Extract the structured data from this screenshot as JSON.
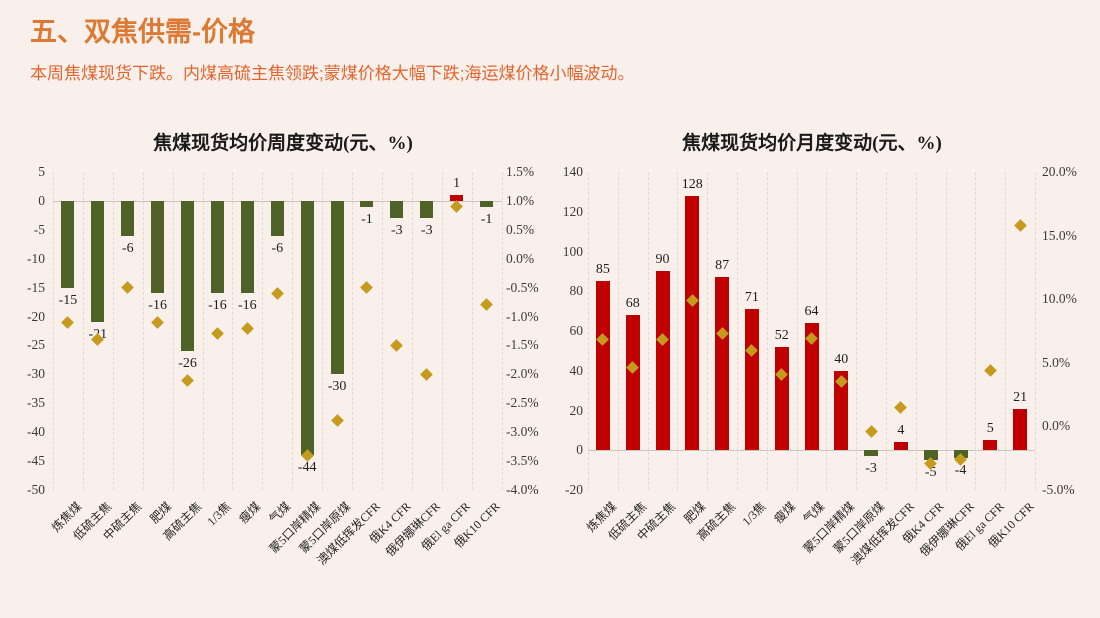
{
  "page": {
    "title": "五、双焦供需-价格",
    "subtitle": "本周焦煤现货下跌。内煤高硫主焦领跌;蒙煤价格大幅下跌;海运煤价格小幅波动。",
    "background": "#FAF0EB",
    "title_color": "#DC7A35",
    "subtitle_color": "#E2652F"
  },
  "colors": {
    "bar_positive": "#C00000",
    "bar_negative": "#4E6227",
    "marker": "#C69A1C",
    "grid": "#E3DAD2",
    "zero_line": "#CCC5BE",
    "axis_text": "#3A3A3A",
    "label_text": "#1F1F1F"
  },
  "chart_data": [
    {
      "type": "bar",
      "title": "焦煤现货均价周度变动(元、%)",
      "legend_position": "none",
      "grid": "vertical-dashed",
      "categories": [
        "炼焦煤",
        "低硫主焦",
        "中硫主焦",
        "肥煤",
        "高硫主焦",
        "1/3焦",
        "瘦煤",
        "气煤",
        "蒙5口岸精煤",
        "蒙5口岸原煤",
        "澳煤低挥发CFR",
        "俄K4 CFR",
        "俄伊娜琳CFR",
        "俄El ga CFR",
        "俄K10 CFR"
      ],
      "series": [
        {
          "type": "bar",
          "axis": "left",
          "values": [
            -15,
            -21,
            -6,
            -16,
            -26,
            -16,
            -16,
            -6,
            -44,
            -30,
            -1,
            -3,
            -3,
            1,
            -1
          ],
          "labels": [
            "-15",
            "-21",
            "-6",
            "-16",
            "-26",
            "-16",
            "-16",
            "-6",
            "-44",
            "-30",
            "-1",
            "-3",
            "-3",
            "1",
            "-1"
          ]
        },
        {
          "type": "scatter-diamond",
          "axis": "right",
          "values_pct": [
            -1.1,
            -1.4,
            -0.5,
            -1.1,
            -2.1,
            -1.3,
            -1.2,
            -0.6,
            -3.4,
            -2.8,
            -0.5,
            -1.5,
            -2.0,
            0.9,
            -0.8
          ]
        }
      ],
      "left_axis": {
        "max": 5,
        "min": -50,
        "step": 5,
        "ticks": [
          "5",
          "0",
          "-5",
          "-10",
          "-15",
          "-20",
          "-25",
          "-30",
          "-35",
          "-40",
          "-45",
          "-50"
        ]
      },
      "right_axis": {
        "max": 1.5,
        "min": -4.0,
        "step": 0.5,
        "ticks": [
          "1.5%",
          "1.0%",
          "0.5%",
          "0.0%",
          "-0.5%",
          "-1.0%",
          "-1.5%",
          "-2.0%",
          "-2.5%",
          "-3.0%",
          "-3.5%",
          "-4.0%"
        ]
      }
    },
    {
      "type": "bar",
      "title": "焦煤现货均价月度变动(元、%)",
      "legend_position": "none",
      "grid": "vertical-dashed",
      "categories": [
        "炼焦煤",
        "低硫主焦",
        "中硫主焦",
        "肥煤",
        "高硫主焦",
        "1/3焦",
        "瘦煤",
        "气煤",
        "蒙5口岸精煤",
        "蒙5口岸原煤",
        "澳煤低挥发CFR",
        "俄K4 CFR",
        "俄伊娜琳CFR",
        "俄El ga CFR",
        "俄K10 CFR"
      ],
      "series": [
        {
          "type": "bar",
          "axis": "left",
          "values": [
            85,
            68,
            90,
            128,
            87,
            71,
            52,
            64,
            40,
            -3,
            4,
            -5,
            -4,
            5,
            21
          ],
          "labels": [
            "85",
            "68",
            "90",
            "128",
            "87",
            "71",
            "52",
            "64",
            "40",
            "-3",
            "4",
            "-5",
            "-4",
            "5",
            "21"
          ]
        },
        {
          "type": "scatter-diamond",
          "axis": "right",
          "values_pct": [
            6.8,
            4.6,
            6.8,
            9.9,
            7.3,
            6.0,
            4.1,
            6.9,
            3.5,
            -0.4,
            1.5,
            -2.9,
            -2.6,
            4.4,
            15.8
          ]
        }
      ],
      "left_axis": {
        "max": 140,
        "min": -20,
        "step": 20,
        "ticks": [
          "140",
          "120",
          "100",
          "80",
          "60",
          "40",
          "20",
          "0",
          "-20"
        ]
      },
      "right_axis": {
        "max": 20.0,
        "min": -5.0,
        "step": 5,
        "ticks": [
          "20.0%",
          "15.0%",
          "10.0%",
          "5.0%",
          "0.0%",
          "-5.0%"
        ]
      }
    }
  ]
}
